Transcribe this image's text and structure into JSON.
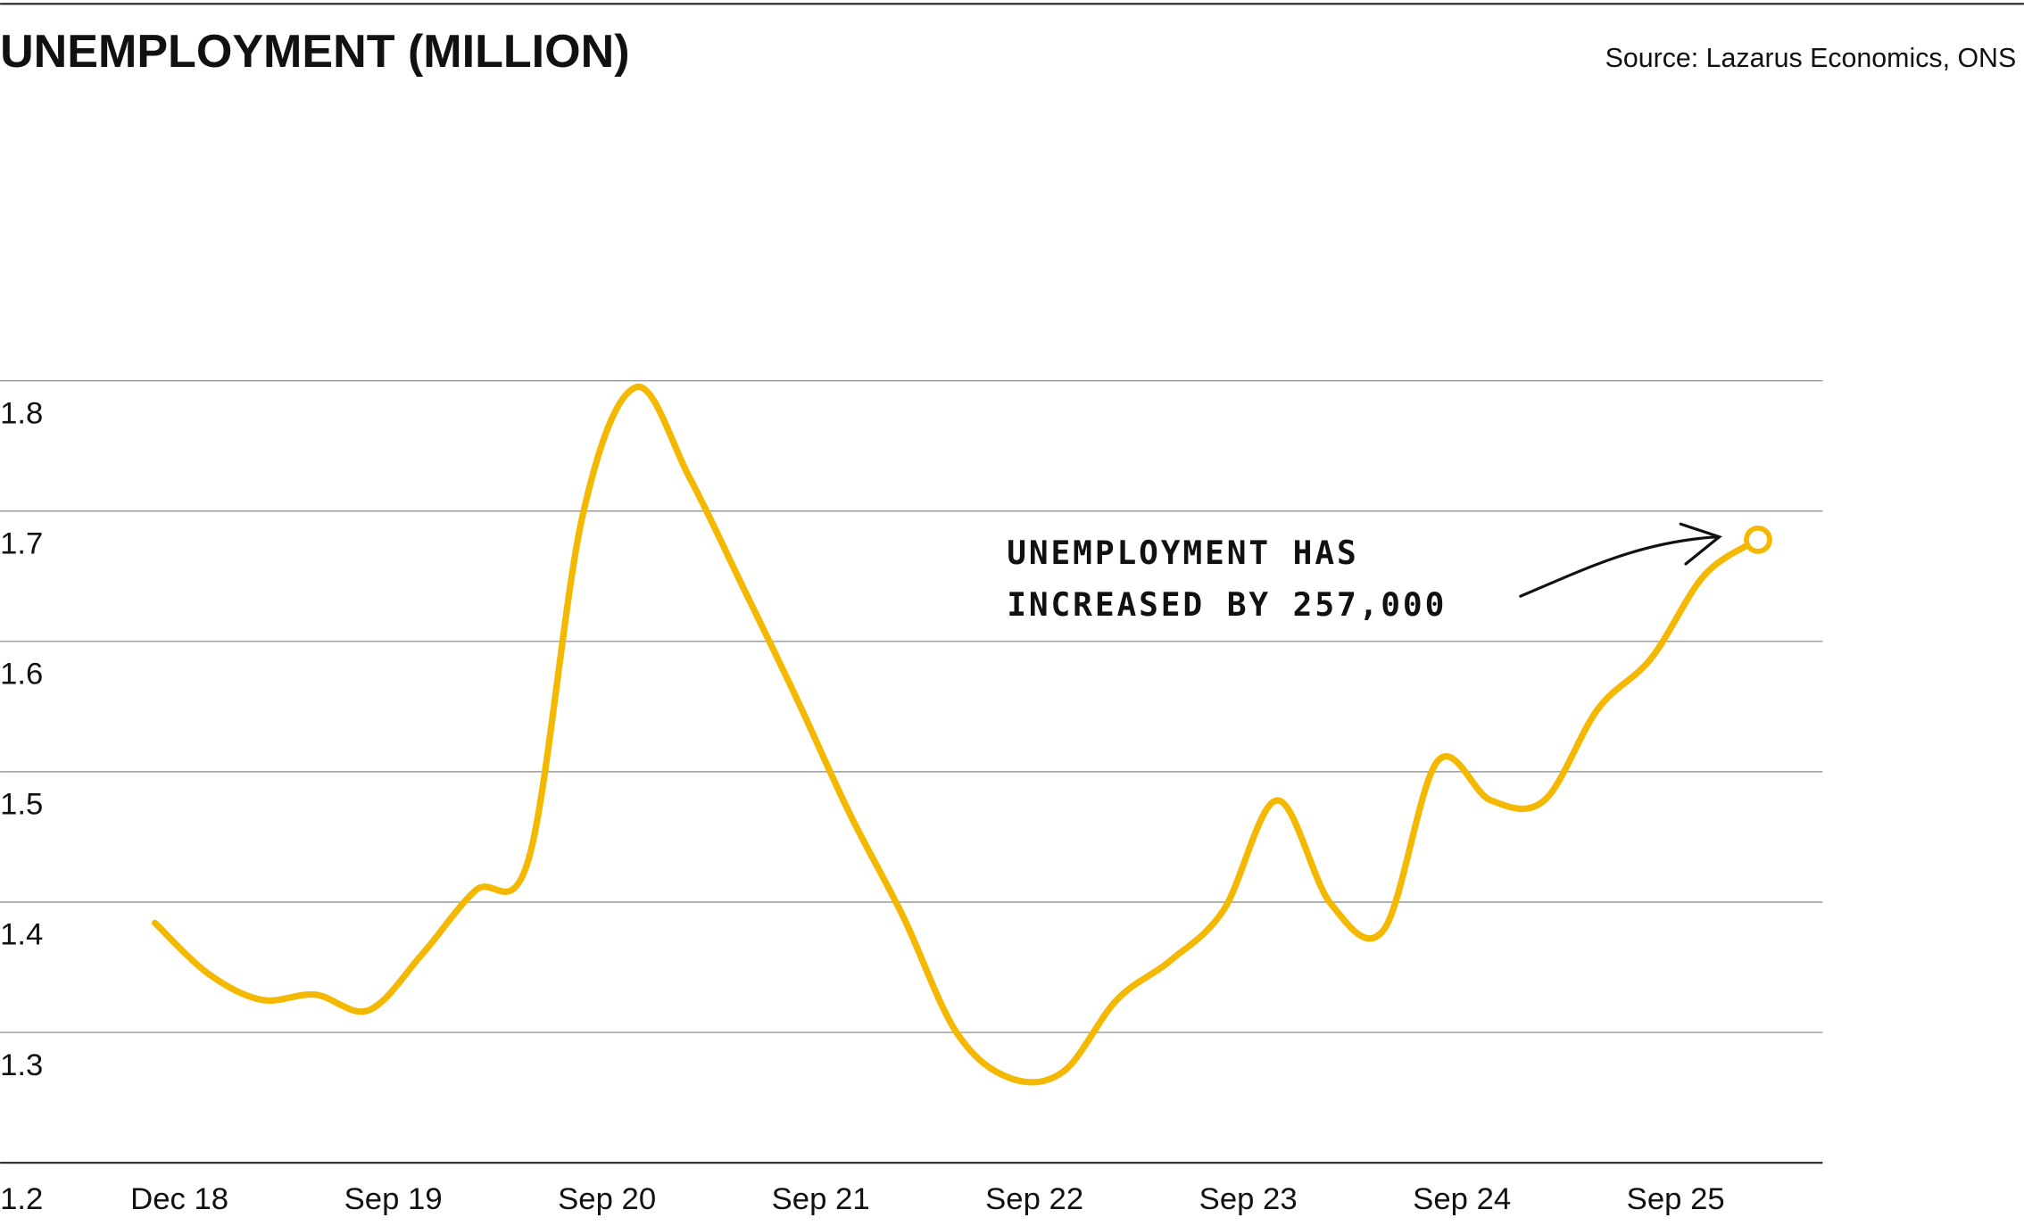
{
  "chart_data": {
    "type": "line",
    "title": "UNEMPLOYMENT (MILLION)",
    "source": "Source: Lazarus Economics, ONS",
    "annotation": [
      "UNEMPLOYMENT HAS",
      "INCREASED BY 257,000"
    ],
    "categories": [
      "Dec 18",
      null,
      null,
      null,
      "Sep 19",
      null,
      null,
      null,
      "Sep 20",
      null,
      null,
      null,
      "Sep 21",
      null,
      null,
      null,
      "Sep 22",
      null,
      null,
      null,
      "Sep 23",
      null,
      null,
      null,
      "Sep 24",
      null,
      null,
      null,
      "Sep 25",
      null,
      null
    ],
    "series": [
      {
        "name": "Unemployment",
        "color": "#f5b800",
        "values": [
          1.384,
          1.345,
          1.325,
          1.329,
          1.317,
          1.36,
          1.409,
          1.434,
          1.696,
          1.795,
          1.726,
          1.642,
          1.557,
          1.468,
          1.389,
          1.3,
          1.265,
          1.27,
          1.325,
          1.355,
          1.394,
          1.478,
          1.399,
          1.379,
          1.508,
          1.478,
          1.478,
          1.548,
          1.587,
          1.651,
          1.678
        ]
      }
    ],
    "ylim": [
      1.2,
      1.8
    ],
    "yticks": [
      1.2,
      1.3,
      1.4,
      1.5,
      1.6,
      1.7,
      1.8
    ],
    "grid": true
  }
}
